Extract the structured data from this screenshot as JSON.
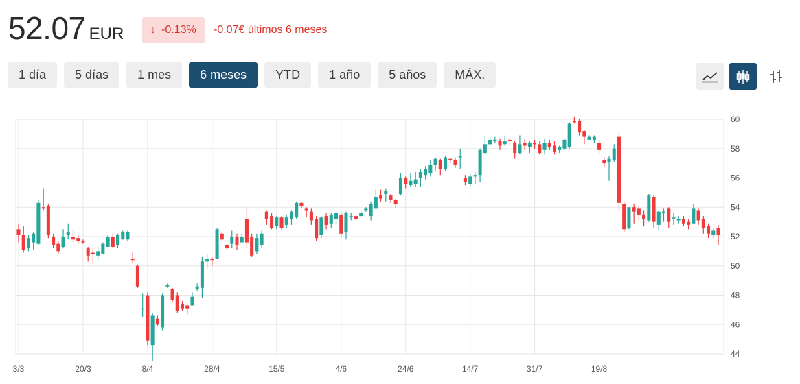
{
  "header": {
    "price": "52.07",
    "currency": "EUR",
    "badge_arrow": "↓",
    "badge_pct": "-0.13%",
    "change_text": "-0.07€ últimos 6 meses"
  },
  "ranges": [
    {
      "label": "1 día",
      "active": false
    },
    {
      "label": "5 días",
      "active": false
    },
    {
      "label": "1 mes",
      "active": false
    },
    {
      "label": "6 meses",
      "active": true
    },
    {
      "label": "YTD",
      "active": false
    },
    {
      "label": "1 año",
      "active": false
    },
    {
      "label": "5 años",
      "active": false
    },
    {
      "label": "MÁX.",
      "active": false
    }
  ],
  "chart_type_buttons": [
    {
      "icon": "line-chart-icon",
      "active": false
    },
    {
      "icon": "candlestick-chart-icon",
      "active": true
    },
    {
      "icon": "ohlc-chart-icon",
      "active": false
    }
  ],
  "colors": {
    "up": "#26a69a",
    "down": "#ef3b3b",
    "grid": "#e6e6e6",
    "active": "#1c4e72",
    "negative_text": "#d93025"
  },
  "chart_data": {
    "type": "candlestick",
    "ylim": [
      44,
      60
    ],
    "y_ticks": [
      44,
      46,
      48,
      50,
      52,
      54,
      56,
      58,
      60
    ],
    "x_ticks": [
      "3/3",
      "20/3",
      "8/4",
      "28/4",
      "15/5",
      "4/6",
      "24/6",
      "14/7",
      "31/7",
      "19/8"
    ],
    "x_tick_index": [
      0,
      13,
      26,
      39,
      52,
      65,
      78,
      91,
      104,
      117
    ],
    "grid": true,
    "candles": [
      [
        52.5,
        52.1,
        52.9,
        51.6
      ],
      [
        52.1,
        51.1,
        52.7,
        50.9
      ],
      [
        51.2,
        51.9,
        52.1,
        51.0
      ],
      [
        51.6,
        52.2,
        52.3,
        51.1
      ],
      [
        51.5,
        54.3,
        54.5,
        51.4
      ],
      [
        54.0,
        53.9,
        55.3,
        53.8
      ],
      [
        54.1,
        52.1,
        54.2,
        51.9
      ],
      [
        52.0,
        51.4,
        52.2,
        51.2
      ],
      [
        51.5,
        51.0,
        51.7,
        50.8
      ],
      [
        51.3,
        52.0,
        52.5,
        51.2
      ],
      [
        52.1,
        52.3,
        52.9,
        51.8
      ],
      [
        52.0,
        51.8,
        52.5,
        51.6
      ],
      [
        51.9,
        51.7,
        52.1,
        51.5
      ],
      [
        51.7,
        51.6,
        51.8,
        51.5
      ],
      [
        51.2,
        50.7,
        51.3,
        50.3
      ],
      [
        50.9,
        50.8,
        51.2,
        50.1
      ],
      [
        50.7,
        51.0,
        51.3,
        50.4
      ],
      [
        50.8,
        51.5,
        51.6,
        50.8
      ],
      [
        51.3,
        52.0,
        52.1,
        51.3
      ],
      [
        52.0,
        51.3,
        52.2,
        51.2
      ],
      [
        51.4,
        52.1,
        52.2,
        51.2
      ],
      [
        51.8,
        52.3,
        52.4,
        51.8
      ],
      [
        51.8,
        52.3,
        52.4,
        51.7
      ],
      [
        50.5,
        50.4,
        50.9,
        50.2
      ],
      [
        50.0,
        48.6,
        50.1,
        48.5
      ],
      [
        47.1,
        47.1,
        48.1,
        46.5
      ],
      [
        48.0,
        44.9,
        48.2,
        44.6
      ],
      [
        44.6,
        46.6,
        46.8,
        43.5
      ],
      [
        46.4,
        46.0,
        46.6,
        45.9
      ],
      [
        45.8,
        48.0,
        48.1,
        45.6
      ],
      [
        48.6,
        48.7,
        48.8,
        48.5
      ],
      [
        48.4,
        47.7,
        48.5,
        47.5
      ],
      [
        48.0,
        46.9,
        48.2,
        46.8
      ],
      [
        47.4,
        47.1,
        47.6,
        46.9
      ],
      [
        47.3,
        47.1,
        47.4,
        46.7
      ],
      [
        47.3,
        47.9,
        48.2,
        47.3
      ],
      [
        48.4,
        48.6,
        48.8,
        48.3
      ],
      [
        48.5,
        50.3,
        50.6,
        47.8
      ],
      [
        50.3,
        50.5,
        50.8,
        49.8
      ],
      [
        50.5,
        50.4,
        50.6,
        50.0
      ],
      [
        50.5,
        52.5,
        52.6,
        50.5
      ],
      [
        52.2,
        51.8,
        52.3,
        51.7
      ],
      [
        51.4,
        51.2,
        51.5,
        51.1
      ],
      [
        51.5,
        52.0,
        52.4,
        51.2
      ],
      [
        52.0,
        51.4,
        52.2,
        51.1
      ],
      [
        51.6,
        52.0,
        52.2,
        51.6
      ],
      [
        53.2,
        51.6,
        54.0,
        51.2
      ],
      [
        52.0,
        50.7,
        52.2,
        50.6
      ],
      [
        51.0,
        51.9,
        52.2,
        50.8
      ],
      [
        51.4,
        52.2,
        52.4,
        51.2
      ],
      [
        53.7,
        53.2,
        53.8,
        52.8
      ],
      [
        53.4,
        52.6,
        53.6,
        52.5
      ],
      [
        52.7,
        53.3,
        53.4,
        52.5
      ],
      [
        53.3,
        52.6,
        53.4,
        52.5
      ],
      [
        52.8,
        53.3,
        53.5,
        52.6
      ],
      [
        53.2,
        53.7,
        53.8,
        52.8
      ],
      [
        53.3,
        54.3,
        54.4,
        53.2
      ],
      [
        54.3,
        54.1,
        54.4,
        53.9
      ],
      [
        53.9,
        53.8,
        54.0,
        53.3
      ],
      [
        53.7,
        53.1,
        53.9,
        52.8
      ],
      [
        53.2,
        51.9,
        53.4,
        51.7
      ],
      [
        52.1,
        53.3,
        53.4,
        51.9
      ],
      [
        53.4,
        52.8,
        53.6,
        52.5
      ],
      [
        52.9,
        53.5,
        53.6,
        52.6
      ],
      [
        53.2,
        53.6,
        53.8,
        52.8
      ],
      [
        53.5,
        52.2,
        53.6,
        52.0
      ],
      [
        52.3,
        53.6,
        53.7,
        51.8
      ],
      [
        53.3,
        53.4,
        53.6,
        53.1
      ],
      [
        53.4,
        53.2,
        53.5,
        53.1
      ],
      [
        53.4,
        53.6,
        53.8,
        53.3
      ],
      [
        53.8,
        53.9,
        54.0,
        53.7
      ],
      [
        53.4,
        54.2,
        54.4,
        53.1
      ],
      [
        53.9,
        54.7,
        55.2,
        53.9
      ],
      [
        54.8,
        54.6,
        55.2,
        54.4
      ],
      [
        54.9,
        55.1,
        55.3,
        54.4
      ],
      [
        54.8,
        54.5,
        54.9,
        54.3
      ],
      [
        54.5,
        54.2,
        54.6,
        53.9
      ],
      [
        54.9,
        56.0,
        56.3,
        54.8
      ],
      [
        56.0,
        55.6,
        56.1,
        55.3
      ],
      [
        55.5,
        55.8,
        56.3,
        55.4
      ],
      [
        55.6,
        55.9,
        56.4,
        55.4
      ],
      [
        56.0,
        56.4,
        56.6,
        55.4
      ],
      [
        56.2,
        56.6,
        56.8,
        55.9
      ],
      [
        56.3,
        56.9,
        57.2,
        56.1
      ],
      [
        56.9,
        57.3,
        57.4,
        56.5
      ],
      [
        57.2,
        56.6,
        57.3,
        56.2
      ],
      [
        56.6,
        57.4,
        57.5,
        56.5
      ],
      [
        57.3,
        57.2,
        57.4,
        57.0
      ],
      [
        57.2,
        56.9,
        57.4,
        56.7
      ],
      [
        57.4,
        57.5,
        58.0,
        56.6
      ],
      [
        56.0,
        55.7,
        56.2,
        55.5
      ],
      [
        55.6,
        56.1,
        56.3,
        55.4
      ],
      [
        56.1,
        56.2,
        56.4,
        55.6
      ],
      [
        56.2,
        57.9,
        58.0,
        55.7
      ],
      [
        57.7,
        58.3,
        58.9,
        57.7
      ],
      [
        58.3,
        58.6,
        58.8,
        58.2
      ],
      [
        58.5,
        58.6,
        58.8,
        58.4
      ],
      [
        58.5,
        58.2,
        58.7,
        57.9
      ],
      [
        58.3,
        58.5,
        58.9,
        58.2
      ],
      [
        58.6,
        58.5,
        58.8,
        58.2
      ],
      [
        58.4,
        57.7,
        58.5,
        57.3
      ],
      [
        57.7,
        58.3,
        58.9,
        57.6
      ],
      [
        58.4,
        58.2,
        58.7,
        57.9
      ],
      [
        58.1,
        58.4,
        58.5,
        57.7
      ],
      [
        58.4,
        58.3,
        58.6,
        58.0
      ],
      [
        58.3,
        57.7,
        58.5,
        57.6
      ],
      [
        57.9,
        58.4,
        58.7,
        57.6
      ],
      [
        58.4,
        58.1,
        58.6,
        57.9
      ],
      [
        58.2,
        57.8,
        58.5,
        57.6
      ],
      [
        57.9,
        58.1,
        58.2,
        57.7
      ],
      [
        58.0,
        58.6,
        58.7,
        57.9
      ],
      [
        58.1,
        59.7,
        59.8,
        58.0
      ],
      [
        59.9,
        59.8,
        60.2,
        59.7
      ],
      [
        59.9,
        59.1,
        60.0,
        58.9
      ],
      [
        59.2,
        58.8,
        59.3,
        58.3
      ],
      [
        58.6,
        58.8,
        58.9,
        58.6
      ],
      [
        58.6,
        58.8,
        58.9,
        58.4
      ],
      [
        58.4,
        57.9,
        58.6,
        57.7
      ],
      [
        57.2,
        57.0,
        57.4,
        56.7
      ],
      [
        57.1,
        57.3,
        57.5,
        55.8
      ],
      [
        57.2,
        58.0,
        58.3,
        57.1
      ],
      [
        58.8,
        54.3,
        59.1,
        53.8
      ],
      [
        54.2,
        52.5,
        54.4,
        52.3
      ],
      [
        52.6,
        54.0,
        54.0,
        52.5
      ],
      [
        54.0,
        53.7,
        54.2,
        52.9
      ],
      [
        53.9,
        53.5,
        54.1,
        53.1
      ],
      [
        53.5,
        53.2,
        53.8,
        52.7
      ],
      [
        53.1,
        54.8,
        54.9,
        53.0
      ],
      [
        54.7,
        53.0,
        54.8,
        52.6
      ],
      [
        52.8,
        53.7,
        53.8,
        52.4
      ],
      [
        53.6,
        53.7,
        53.9,
        53.0
      ],
      [
        53.9,
        53.0,
        54.0,
        52.6
      ],
      [
        53.3,
        53.3,
        53.6,
        52.8
      ],
      [
        53.1,
        53.2,
        53.4,
        52.9
      ],
      [
        53.2,
        52.9,
        53.4,
        52.7
      ],
      [
        53.0,
        52.8,
        53.2,
        52.5
      ],
      [
        52.9,
        53.9,
        54.2,
        52.9
      ],
      [
        53.8,
        53.1,
        53.9,
        52.8
      ],
      [
        53.2,
        52.6,
        53.4,
        52.2
      ],
      [
        52.7,
        52.2,
        52.9,
        51.9
      ],
      [
        52.1,
        52.4,
        52.6,
        51.9
      ],
      [
        52.6,
        52.1,
        52.8,
        51.4
      ]
    ]
  }
}
